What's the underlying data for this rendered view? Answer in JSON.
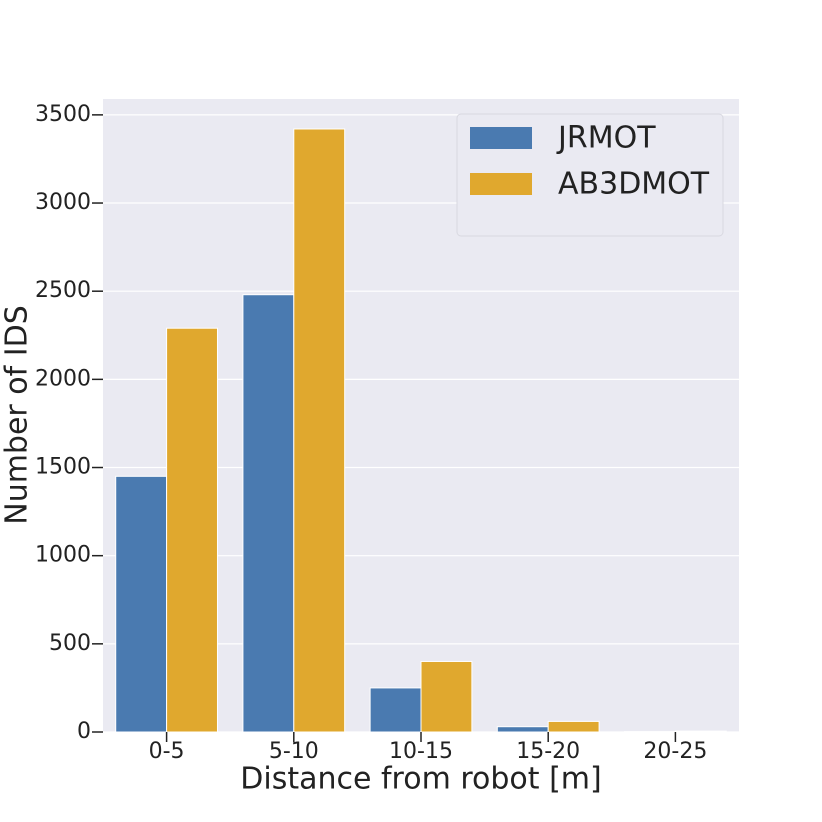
{
  "chart_data": {
    "type": "bar",
    "xlabel": "Distance from robot [m]",
    "ylabel": "Number of IDS",
    "categories": [
      "0-5",
      "5-10",
      "10-15",
      "15-20",
      "20-25"
    ],
    "series": [
      {
        "name": "JRMOT",
        "color": "#4a7ab0",
        "values": [
          1450,
          2480,
          250,
          30,
          2
        ]
      },
      {
        "name": "AB3DMOT",
        "color": "#e0a82e",
        "values": [
          2290,
          3420,
          400,
          60,
          5
        ]
      }
    ],
    "ylim": [
      0,
      3590
    ],
    "yticks": [
      0,
      500,
      1000,
      1500,
      2000,
      2500,
      3000,
      3500
    ],
    "grid": true,
    "legend": "upper-right"
  }
}
